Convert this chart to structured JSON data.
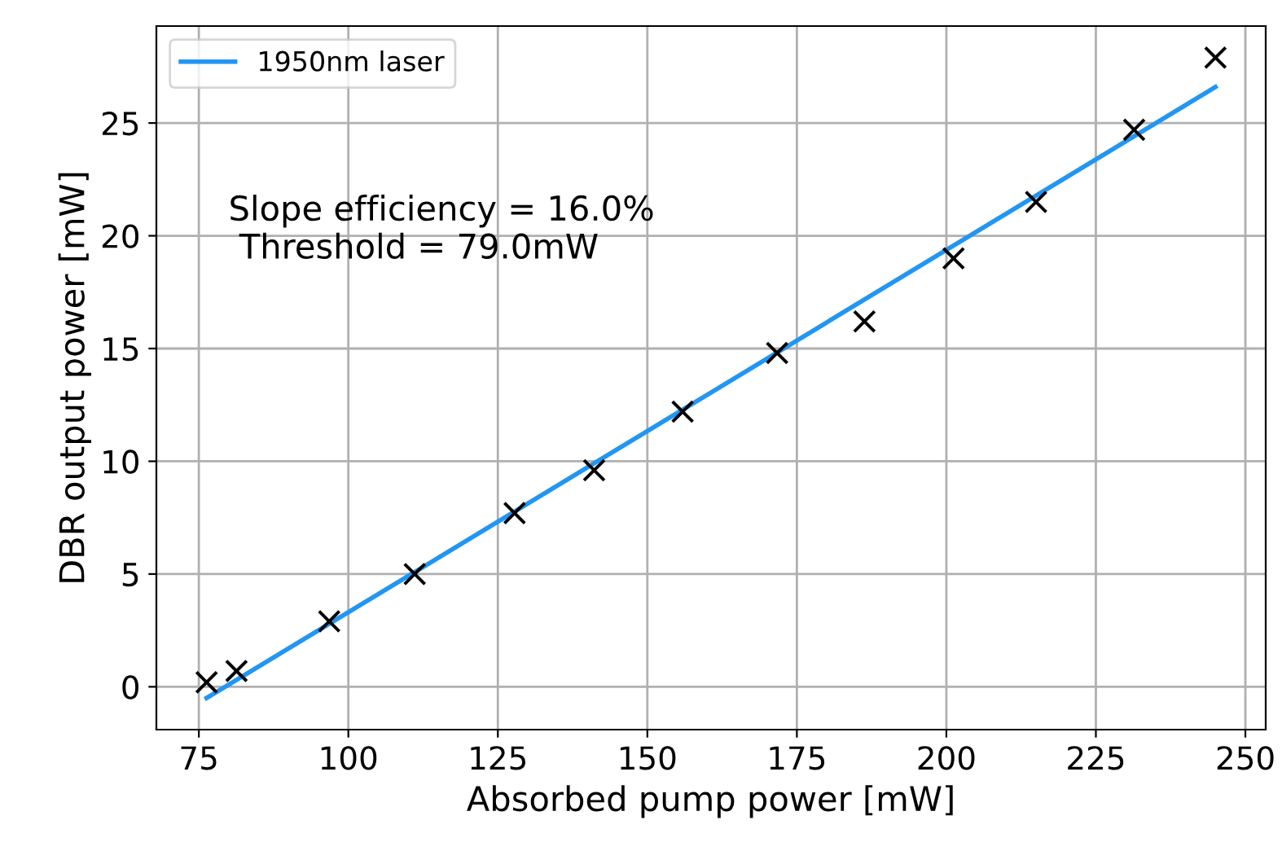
{
  "chart_data": {
    "type": "scatter",
    "xlabel": "Absorbed pump power [mW]",
    "ylabel": "DBR output power [mW]",
    "series": [
      {
        "color": "#000000",
        "marker": "cross",
        "x": [
          76.3,
          81.3,
          96.8,
          111.1,
          127.8,
          141.1,
          155.9,
          171.7,
          186.3,
          201.2,
          215.0,
          231.4,
          245.0
        ],
        "values": [
          0.2,
          0.7,
          2.9,
          5.0,
          7.7,
          9.6,
          12.2,
          14.8,
          16.2,
          19.0,
          21.5,
          24.7,
          27.9
        ]
      },
      {
        "type": "line",
        "name": "1950nm laser",
        "color": "#2196f3",
        "x": [
          76.3,
          245.0
        ],
        "values": [
          -0.5,
          26.6
        ]
      }
    ],
    "annotations": [
      "Slope efficiency = 16.0%\n Threshold = 79.0mW"
    ],
    "xlim": [
      67.9,
      253.4
    ],
    "ylim": [
      -1.9,
      29.3
    ],
    "xticks": [
      75,
      100,
      125,
      150,
      175,
      200,
      225,
      250
    ],
    "yticks": [
      0,
      5,
      10,
      15,
      20,
      25
    ],
    "grid": true,
    "legend": "top left"
  }
}
